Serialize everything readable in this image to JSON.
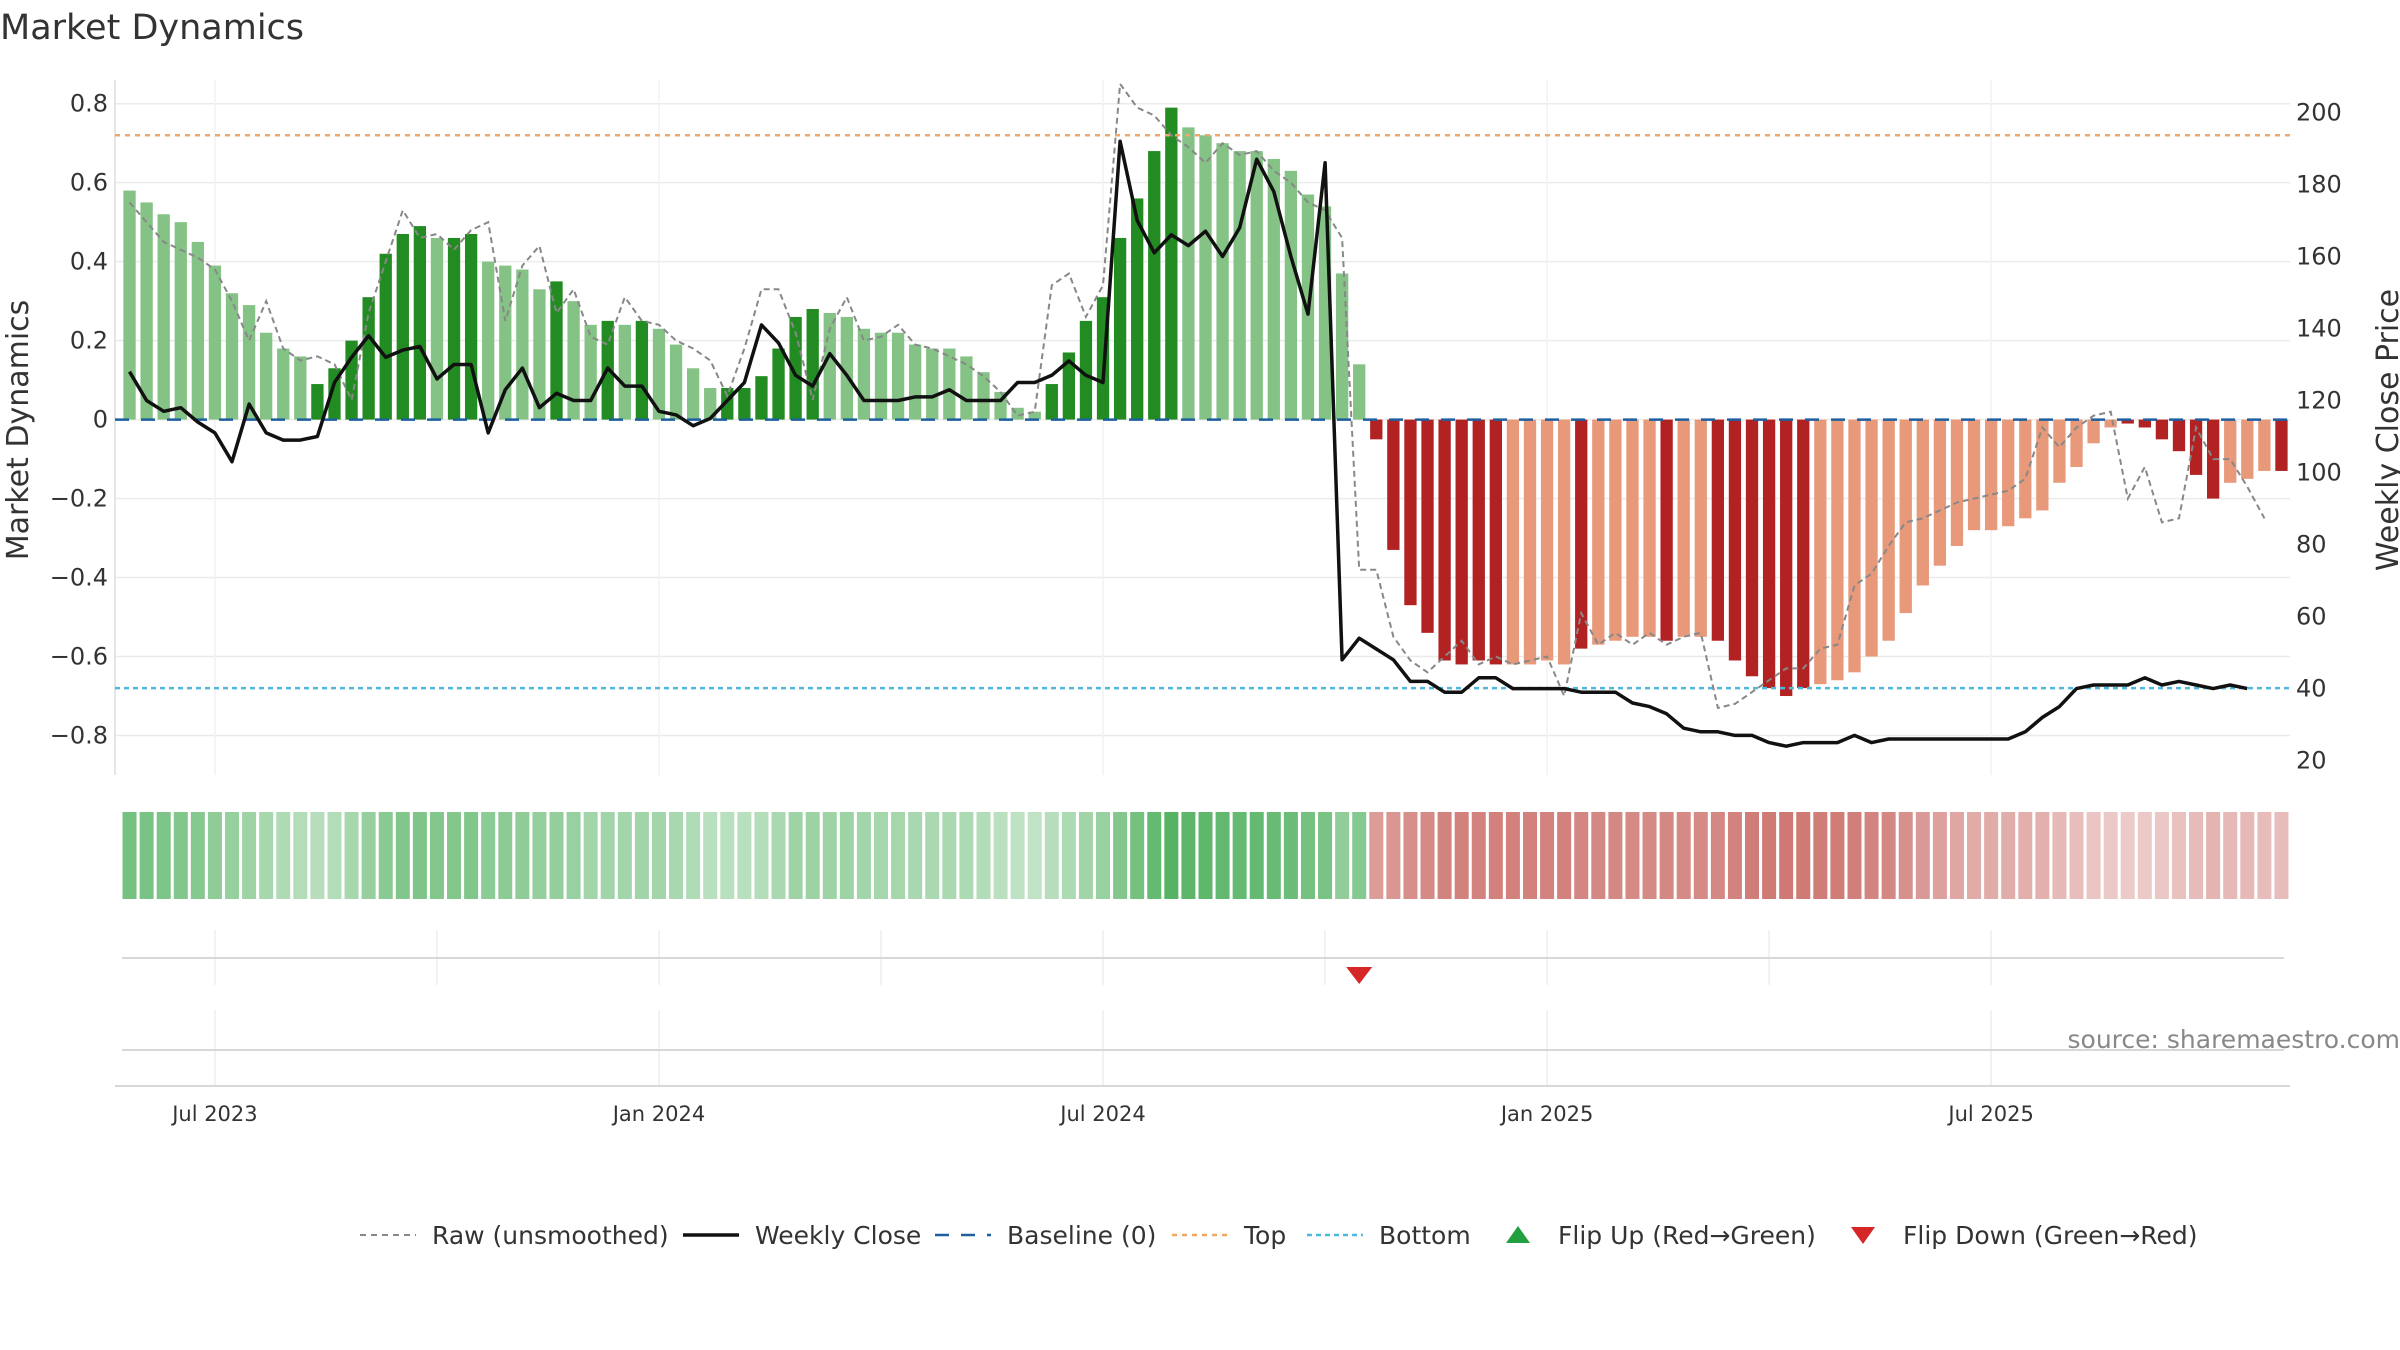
{
  "chart_data": {
    "type": "bar",
    "title": "Market Dynamics",
    "ylabel_left": "Market Dynamics",
    "ylabel_right": "Weekly Close Price",
    "ylim_left": [
      -0.9,
      0.86
    ],
    "ylim_right": [
      16,
      209
    ],
    "left_ticks": [
      {
        "value": 0.8,
        "label": "0.8"
      },
      {
        "value": 0.6,
        "label": "0.6"
      },
      {
        "value": 0.4,
        "label": "0.4"
      },
      {
        "value": 0.2,
        "label": "0.2"
      },
      {
        "value": 0,
        "label": "0"
      },
      {
        "value": -0.2,
        "label": "−0.2"
      },
      {
        "value": -0.4,
        "label": "−0.4"
      },
      {
        "value": -0.6,
        "label": "−0.6"
      },
      {
        "value": -0.8,
        "label": "−0.8"
      }
    ],
    "right_ticks": [
      {
        "value": 200,
        "label": "200"
      },
      {
        "value": 180,
        "label": "180"
      },
      {
        "value": 160,
        "label": "160"
      },
      {
        "value": 140,
        "label": "140"
      },
      {
        "value": 120,
        "label": "120"
      },
      {
        "value": 100,
        "label": "100"
      },
      {
        "value": 80,
        "label": "80"
      },
      {
        "value": 60,
        "label": "60"
      },
      {
        "value": 40,
        "label": "40"
      },
      {
        "value": 20,
        "label": "20"
      }
    ],
    "x_ticks": [
      {
        "week": 5,
        "label": "Jul 2023"
      },
      {
        "week": 31,
        "label": "Jan 2024"
      },
      {
        "week": 57,
        "label": "Jul 2024"
      },
      {
        "week": 83,
        "label": "Jan 2025"
      },
      {
        "week": 109,
        "label": "Jul 2025"
      }
    ],
    "x_minor_gridlines": [
      18,
      44,
      70,
      96
    ],
    "top_level": 0.72,
    "bottom_level": -0.68,
    "baseline": 0,
    "values": [
      0.58,
      0.55,
      0.52,
      0.5,
      0.45,
      0.39,
      0.32,
      0.29,
      0.22,
      0.18,
      0.16,
      0.09,
      0.13,
      0.2,
      0.31,
      0.42,
      0.47,
      0.49,
      0.46,
      0.46,
      0.47,
      0.4,
      0.39,
      0.38,
      0.33,
      0.35,
      0.3,
      0.24,
      0.25,
      0.24,
      0.25,
      0.23,
      0.19,
      0.13,
      0.08,
      0.08,
      0.08,
      0.11,
      0.18,
      0.26,
      0.28,
      0.27,
      0.26,
      0.23,
      0.22,
      0.22,
      0.19,
      0.18,
      0.18,
      0.16,
      0.12,
      0.07,
      0.03,
      0.02,
      0.09,
      0.17,
      0.25,
      0.31,
      0.46,
      0.56,
      0.68,
      0.79,
      0.74,
      0.72,
      0.7,
      0.68,
      0.68,
      0.66,
      0.63,
      0.57,
      0.54,
      0.37,
      0.14,
      -0.05,
      -0.33,
      -0.47,
      -0.54,
      -0.61,
      -0.62,
      -0.61,
      -0.62,
      -0.62,
      -0.62,
      -0.61,
      -0.62,
      -0.58,
      -0.57,
      -0.56,
      -0.55,
      -0.55,
      -0.56,
      -0.55,
      -0.55,
      -0.56,
      -0.61,
      -0.65,
      -0.68,
      -0.7,
      -0.68,
      -0.67,
      -0.66,
      -0.64,
      -0.6,
      -0.56,
      -0.49,
      -0.42,
      -0.37,
      -0.32,
      -0.28,
      -0.28,
      -0.27,
      -0.25,
      -0.23,
      -0.16,
      -0.12,
      -0.06,
      -0.02,
      -0.01,
      -0.02,
      -0.05,
      -0.08,
      -0.14,
      -0.2,
      -0.16,
      -0.15,
      -0.13,
      -0.13
    ],
    "bar_styles": [
      "L",
      "L",
      "L",
      "L",
      "L",
      "L",
      "L",
      "L",
      "L",
      "L",
      "L",
      "D",
      "D",
      "D",
      "D",
      "D",
      "D",
      "D",
      "L",
      "D",
      "D",
      "L",
      "L",
      "L",
      "L",
      "D",
      "L",
      "L",
      "D",
      "L",
      "D",
      "L",
      "L",
      "L",
      "L",
      "D",
      "D",
      "D",
      "D",
      "D",
      "D",
      "L",
      "L",
      "L",
      "L",
      "L",
      "L",
      "L",
      "L",
      "L",
      "L",
      "L",
      "L",
      "L",
      "D",
      "D",
      "D",
      "D",
      "D",
      "D",
      "D",
      "D",
      "L",
      "L",
      "L",
      "L",
      "L",
      "L",
      "L",
      "L",
      "L",
      "L",
      "L",
      "D",
      "D",
      "D",
      "D",
      "D",
      "D",
      "D",
      "D",
      "L",
      "L",
      "L",
      "L",
      "D",
      "L",
      "L",
      "L",
      "L",
      "D",
      "L",
      "L",
      "D",
      "D",
      "D",
      "D",
      "D",
      "D",
      "L",
      "L",
      "L",
      "L",
      "L",
      "L",
      "L",
      "L",
      "L",
      "L",
      "L",
      "L",
      "L",
      "L",
      "L",
      "L",
      "L",
      "L",
      "D",
      "D",
      "D",
      "D",
      "D",
      "D",
      "L",
      "L",
      "L",
      "D"
    ],
    "raw_values": [
      0.55,
      0.5,
      0.45,
      0.43,
      0.41,
      0.38,
      0.3,
      0.2,
      0.3,
      0.18,
      0.15,
      0.16,
      0.14,
      0.05,
      0.27,
      0.4,
      0.53,
      0.46,
      0.47,
      0.43,
      0.48,
      0.5,
      0.25,
      0.39,
      0.44,
      0.27,
      0.33,
      0.21,
      0.19,
      0.31,
      0.25,
      0.24,
      0.2,
      0.18,
      0.15,
      0.06,
      0.18,
      0.33,
      0.33,
      0.22,
      0.05,
      0.23,
      0.31,
      0.2,
      0.21,
      0.24,
      0.19,
      0.18,
      0.16,
      0.14,
      0.11,
      0.07,
      0.01,
      0.02,
      0.34,
      0.37,
      0.26,
      0.34,
      0.85,
      0.79,
      0.77,
      0.72,
      0.69,
      0.65,
      0.7,
      0.67,
      0.68,
      0.63,
      0.6,
      0.55,
      0.53,
      0.46,
      -0.38,
      -0.38,
      -0.55,
      -0.61,
      -0.64,
      -0.6,
      -0.56,
      -0.62,
      -0.6,
      -0.62,
      -0.61,
      -0.6,
      -0.7,
      -0.49,
      -0.57,
      -0.54,
      -0.57,
      -0.54,
      -0.57,
      -0.55,
      -0.54,
      -0.73,
      -0.72,
      -0.69,
      -0.66,
      -0.63,
      -0.63,
      -0.58,
      -0.57,
      -0.42,
      -0.39,
      -0.32,
      -0.26,
      -0.25,
      -0.23,
      -0.21,
      -0.2,
      -0.19,
      -0.18,
      -0.15,
      -0.02,
      -0.07,
      -0.02,
      0.01,
      0.02,
      -0.2,
      -0.12,
      -0.26,
      -0.25,
      -0.02,
      -0.1,
      -0.1,
      -0.17,
      -0.25
    ],
    "weekly_close": [
      128,
      120,
      117,
      118,
      114,
      111,
      103,
      119,
      111,
      109,
      109,
      110,
      125,
      132,
      138,
      132,
      134,
      135,
      126,
      130,
      130,
      111,
      123,
      129,
      118,
      122,
      120,
      120,
      129,
      124,
      124,
      117,
      116,
      113,
      115,
      120,
      125,
      141,
      136,
      127,
      124,
      133,
      127,
      120,
      120,
      120,
      121,
      121,
      123,
      120,
      120,
      120,
      125,
      125,
      127,
      131,
      127,
      125,
      192,
      170,
      161,
      166,
      163,
      167,
      160,
      168,
      187,
      178,
      160,
      144,
      186,
      48,
      54,
      51,
      48,
      42,
      42,
      39,
      39,
      43,
      43,
      40,
      40,
      40,
      40,
      39,
      39,
      39,
      36,
      35,
      33,
      29,
      28,
      28,
      27,
      27,
      25,
      24,
      25,
      25,
      25,
      27,
      25,
      26,
      26,
      26,
      26,
      26,
      26,
      26,
      26,
      28,
      32,
      35,
      40,
      41,
      41,
      41,
      43,
      41,
      42,
      41,
      40,
      41,
      40
    ],
    "regime_strips": [
      {
        "phase": "up",
        "intensity": 0.75
      },
      {
        "phase": "up",
        "intensity": 0.72
      },
      {
        "phase": "up",
        "intensity": 0.69
      },
      {
        "phase": "up",
        "intensity": 0.66
      },
      {
        "phase": "up",
        "intensity": 0.62
      },
      {
        "phase": "up",
        "intensity": 0.56
      },
      {
        "phase": "up",
        "intensity": 0.5
      },
      {
        "phase": "up",
        "intensity": 0.44
      },
      {
        "phase": "up",
        "intensity": 0.38
      },
      {
        "phase": "up",
        "intensity": 0.33
      },
      {
        "phase": "up",
        "intensity": 0.3
      },
      {
        "phase": "up",
        "intensity": 0.27
      },
      {
        "phase": "up",
        "intensity": 0.3
      },
      {
        "phase": "up",
        "intensity": 0.38
      },
      {
        "phase": "up",
        "intensity": 0.5
      },
      {
        "phase": "up",
        "intensity": 0.6
      },
      {
        "phase": "up",
        "intensity": 0.65
      },
      {
        "phase": "up",
        "intensity": 0.67
      },
      {
        "phase": "up",
        "intensity": 0.64
      },
      {
        "phase": "up",
        "intensity": 0.64
      },
      {
        "phase": "up",
        "intensity": 0.65
      },
      {
        "phase": "up",
        "intensity": 0.58
      },
      {
        "phase": "up",
        "intensity": 0.57
      },
      {
        "phase": "up",
        "intensity": 0.56
      },
      {
        "phase": "up",
        "intensity": 0.51
      },
      {
        "phase": "up",
        "intensity": 0.53
      },
      {
        "phase": "up",
        "intensity": 0.48
      },
      {
        "phase": "up",
        "intensity": 0.42
      },
      {
        "phase": "up",
        "intensity": 0.43
      },
      {
        "phase": "up",
        "intensity": 0.42
      },
      {
        "phase": "up",
        "intensity": 0.43
      },
      {
        "phase": "up",
        "intensity": 0.41
      },
      {
        "phase": "up",
        "intensity": 0.37
      },
      {
        "phase": "up",
        "intensity": 0.31
      },
      {
        "phase": "up",
        "intensity": 0.26
      },
      {
        "phase": "up",
        "intensity": 0.26
      },
      {
        "phase": "up",
        "intensity": 0.26
      },
      {
        "phase": "up",
        "intensity": 0.29
      },
      {
        "phase": "up",
        "intensity": 0.36
      },
      {
        "phase": "up",
        "intensity": 0.44
      },
      {
        "phase": "up",
        "intensity": 0.46
      },
      {
        "phase": "up",
        "intensity": 0.45
      },
      {
        "phase": "up",
        "intensity": 0.44
      },
      {
        "phase": "up",
        "intensity": 0.41
      },
      {
        "phase": "up",
        "intensity": 0.4
      },
      {
        "phase": "up",
        "intensity": 0.4
      },
      {
        "phase": "up",
        "intensity": 0.37
      },
      {
        "phase": "up",
        "intensity": 0.36
      },
      {
        "phase": "up",
        "intensity": 0.36
      },
      {
        "phase": "up",
        "intensity": 0.34
      },
      {
        "phase": "up",
        "intensity": 0.3
      },
      {
        "phase": "up",
        "intensity": 0.25
      },
      {
        "phase": "up",
        "intensity": 0.21
      },
      {
        "phase": "up",
        "intensity": 0.2
      },
      {
        "phase": "up",
        "intensity": 0.27
      },
      {
        "phase": "up",
        "intensity": 0.35
      },
      {
        "phase": "up",
        "intensity": 0.43
      },
      {
        "phase": "up",
        "intensity": 0.49
      },
      {
        "phase": "up",
        "intensity": 0.64
      },
      {
        "phase": "up",
        "intensity": 0.74
      },
      {
        "phase": "up",
        "intensity": 0.86
      },
      {
        "phase": "up",
        "intensity": 0.97
      },
      {
        "phase": "up",
        "intensity": 0.92
      },
      {
        "phase": "up",
        "intensity": 0.9
      },
      {
        "phase": "up",
        "intensity": 0.88
      },
      {
        "phase": "up",
        "intensity": 0.86
      },
      {
        "phase": "up",
        "intensity": 0.86
      },
      {
        "phase": "up",
        "intensity": 0.84
      },
      {
        "phase": "up",
        "intensity": 0.81
      },
      {
        "phase": "up",
        "intensity": 0.75
      },
      {
        "phase": "up",
        "intensity": 0.72
      },
      {
        "phase": "up",
        "intensity": 0.55
      },
      {
        "phase": "up",
        "intensity": 0.62
      },
      {
        "phase": "down",
        "intensity": 0.55
      },
      {
        "phase": "down",
        "intensity": 0.6
      },
      {
        "phase": "down",
        "intensity": 0.65
      },
      {
        "phase": "down",
        "intensity": 0.7
      },
      {
        "phase": "down",
        "intensity": 0.76
      },
      {
        "phase": "down",
        "intensity": 0.77
      },
      {
        "phase": "down",
        "intensity": 0.76
      },
      {
        "phase": "down",
        "intensity": 0.77
      },
      {
        "phase": "down",
        "intensity": 0.77
      },
      {
        "phase": "down",
        "intensity": 0.77
      },
      {
        "phase": "down",
        "intensity": 0.76
      },
      {
        "phase": "down",
        "intensity": 0.77
      },
      {
        "phase": "down",
        "intensity": 0.73
      },
      {
        "phase": "down",
        "intensity": 0.72
      },
      {
        "phase": "down",
        "intensity": 0.71
      },
      {
        "phase": "down",
        "intensity": 0.7
      },
      {
        "phase": "down",
        "intensity": 0.7
      },
      {
        "phase": "down",
        "intensity": 0.71
      },
      {
        "phase": "down",
        "intensity": 0.7
      },
      {
        "phase": "down",
        "intensity": 0.7
      },
      {
        "phase": "down",
        "intensity": 0.71
      },
      {
        "phase": "down",
        "intensity": 0.76
      },
      {
        "phase": "down",
        "intensity": 0.8
      },
      {
        "phase": "down",
        "intensity": 0.83
      },
      {
        "phase": "down",
        "intensity": 0.85
      },
      {
        "phase": "down",
        "intensity": 0.83
      },
      {
        "phase": "down",
        "intensity": 0.82
      },
      {
        "phase": "down",
        "intensity": 0.81
      },
      {
        "phase": "down",
        "intensity": 0.79
      },
      {
        "phase": "down",
        "intensity": 0.75
      },
      {
        "phase": "down",
        "intensity": 0.71
      },
      {
        "phase": "down",
        "intensity": 0.64
      },
      {
        "phase": "down",
        "intensity": 0.57
      },
      {
        "phase": "down",
        "intensity": 0.52
      },
      {
        "phase": "down",
        "intensity": 0.47
      },
      {
        "phase": "down",
        "intensity": 0.43
      },
      {
        "phase": "down",
        "intensity": 0.43
      },
      {
        "phase": "down",
        "intensity": 0.42
      },
      {
        "phase": "down",
        "intensity": 0.4
      },
      {
        "phase": "down",
        "intensity": 0.38
      },
      {
        "phase": "down",
        "intensity": 0.31
      },
      {
        "phase": "down",
        "intensity": 0.27
      },
      {
        "phase": "down",
        "intensity": 0.22
      },
      {
        "phase": "down",
        "intensity": 0.18
      },
      {
        "phase": "down",
        "intensity": 0.17
      },
      {
        "phase": "down",
        "intensity": 0.18
      },
      {
        "phase": "down",
        "intensity": 0.2
      },
      {
        "phase": "down",
        "intensity": 0.24
      },
      {
        "phase": "down",
        "intensity": 0.3
      },
      {
        "phase": "down",
        "intensity": 0.36
      },
      {
        "phase": "down",
        "intensity": 0.32
      },
      {
        "phase": "down",
        "intensity": 0.31
      },
      {
        "phase": "down",
        "intensity": 0.29
      },
      {
        "phase": "down",
        "intensity": 0.29
      }
    ],
    "flip_markers": [
      {
        "week": 72.5,
        "direction": "down"
      }
    ],
    "legend": [
      {
        "key": "raw",
        "label": "Raw (unsmoothed)"
      },
      {
        "key": "close",
        "label": "Weekly Close"
      },
      {
        "key": "baseline",
        "label": "Baseline (0)"
      },
      {
        "key": "top",
        "label": "Top"
      },
      {
        "key": "bottom",
        "label": "Bottom"
      },
      {
        "key": "flip_up",
        "label": "Flip Up (Red→Green)"
      },
      {
        "key": "flip_down",
        "label": "Flip Down (Green→Red)"
      }
    ],
    "legend_placement": "bottom",
    "source": "source: sharemaestro.com",
    "colors": {
      "up_dark": "#228b22",
      "up_light": "#85c285",
      "down_dark": "#b22222",
      "down_light": "#e8997a",
      "raw_line": "#888888",
      "close_line": "#111111",
      "baseline": "#1f5f9f",
      "top": "#f0a868",
      "bottom": "#4fb8dd",
      "flip_up": "#22a040",
      "flip_down": "#d62728",
      "grid": "#ebebeb"
    }
  }
}
